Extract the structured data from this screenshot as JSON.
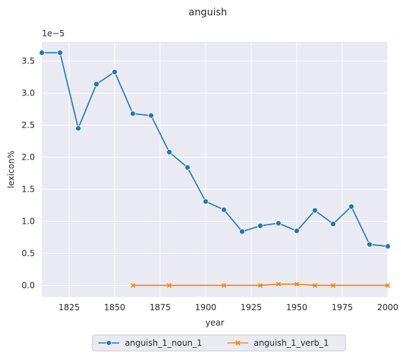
{
  "chart_data": {
    "type": "line",
    "title": "anguish",
    "xlabel": "year",
    "ylabel": "lexicon%",
    "y_scale_label": "1e−5",
    "xlim": [
      1810,
      2000
    ],
    "ylim": [
      -0.18,
      3.8
    ],
    "x_ticks": [
      1825,
      1850,
      1875,
      1900,
      1925,
      1950,
      1975,
      2000
    ],
    "x_tick_labels": [
      "1825",
      "1850",
      "1875",
      "1900",
      "1925",
      "1950",
      "1975",
      "2000"
    ],
    "y_ticks": [
      0.0,
      0.5,
      1.0,
      1.5,
      2.0,
      2.5,
      3.0,
      3.5
    ],
    "y_tick_labels": [
      "0.0",
      "0.5",
      "1.0",
      "1.5",
      "2.0",
      "2.5",
      "3.0",
      "3.5"
    ],
    "grid": true,
    "legend_position": "bottom-center",
    "series": [
      {
        "name": "anguish_1_noun_1",
        "color": "#1f77b4",
        "marker": "circle",
        "x": [
          1810,
          1820,
          1830,
          1840,
          1850,
          1860,
          1870,
          1880,
          1890,
          1900,
          1910,
          1920,
          1930,
          1940,
          1950,
          1960,
          1970,
          1980,
          1990,
          2000
        ],
        "y": [
          3.63,
          3.63,
          2.45,
          3.14,
          3.33,
          2.68,
          2.65,
          2.08,
          1.84,
          1.31,
          1.18,
          0.84,
          0.93,
          0.97,
          0.85,
          1.17,
          0.96,
          1.23,
          0.64,
          0.61
        ]
      },
      {
        "name": "anguish_1_verb_1",
        "color": "#ff7f0e",
        "marker": "x",
        "x": [
          1860,
          1880,
          1910,
          1930,
          1940,
          1950,
          1960,
          1970,
          2000
        ],
        "y": [
          0.0,
          0.0,
          0.0,
          0.0,
          0.02,
          0.02,
          0.0,
          0.0,
          0.0
        ]
      }
    ]
  }
}
